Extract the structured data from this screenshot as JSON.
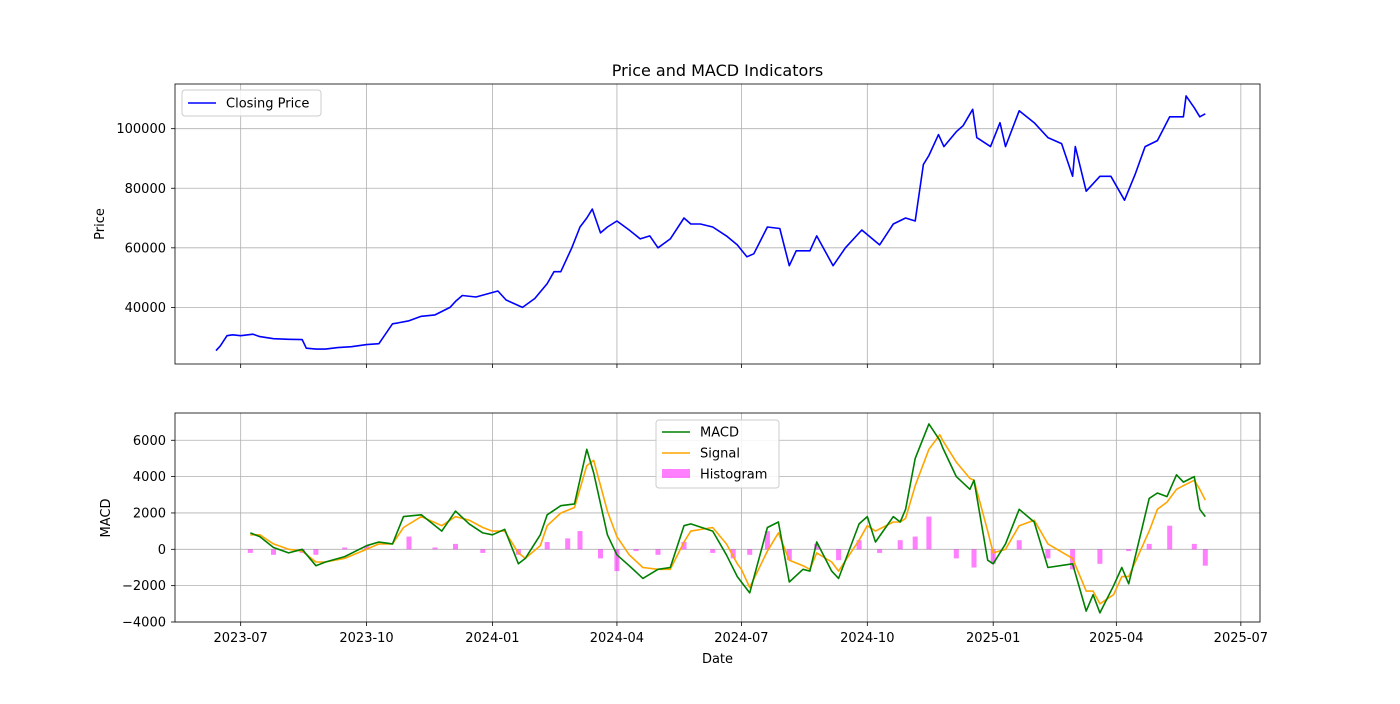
{
  "chart_data": [
    {
      "type": "line",
      "title": "Price and MACD Indicators",
      "xlabel": "",
      "ylabel": "Price",
      "ylim": [
        21000,
        115000
      ],
      "yticks": [
        40000,
        60000,
        80000,
        100000
      ],
      "grid": true,
      "legend": "top-left",
      "series": [
        {
          "name": "Closing Price",
          "color": "#0000ff",
          "x": [
            "2023-06-13",
            "2023-06-16",
            "2023-06-21",
            "2023-06-25",
            "2023-07-01",
            "2023-07-10",
            "2023-07-15",
            "2023-07-25",
            "2023-08-05",
            "2023-08-15",
            "2023-08-18",
            "2023-08-25",
            "2023-09-01",
            "2023-09-10",
            "2023-09-20",
            "2023-10-01",
            "2023-10-10",
            "2023-10-20",
            "2023-10-24",
            "2023-11-01",
            "2023-11-10",
            "2023-11-20",
            "2023-12-01",
            "2023-12-05",
            "2023-12-10",
            "2023-12-20",
            "2024-01-01",
            "2024-01-05",
            "2024-01-11",
            "2024-01-23",
            "2024-02-01",
            "2024-02-10",
            "2024-02-15",
            "2024-02-20",
            "2024-02-28",
            "2024-03-05",
            "2024-03-10",
            "2024-03-14",
            "2024-03-20",
            "2024-03-25",
            "2024-04-01",
            "2024-04-10",
            "2024-04-18",
            "2024-04-25",
            "2024-05-01",
            "2024-05-10",
            "2024-05-20",
            "2024-05-25",
            "2024-06-01",
            "2024-06-10",
            "2024-06-20",
            "2024-06-28",
            "2024-07-05",
            "2024-07-10",
            "2024-07-20",
            "2024-07-29",
            "2024-08-05",
            "2024-08-10",
            "2024-08-20",
            "2024-08-25",
            "2024-09-06",
            "2024-09-15",
            "2024-09-27",
            "2024-10-10",
            "2024-10-20",
            "2024-10-29",
            "2024-11-05",
            "2024-11-11",
            "2024-11-15",
            "2024-11-22",
            "2024-11-26",
            "2024-12-05",
            "2024-12-10",
            "2024-12-17",
            "2024-12-20",
            "2024-12-30",
            "2025-01-06",
            "2025-01-10",
            "2025-01-20",
            "2025-01-31",
            "2025-02-10",
            "2025-02-20",
            "2025-02-28",
            "2025-03-02",
            "2025-03-10",
            "2025-03-20",
            "2025-03-28",
            "2025-04-07",
            "2025-04-15",
            "2025-04-22",
            "2025-05-01",
            "2025-05-10",
            "2025-05-20",
            "2025-05-22",
            "2025-05-28",
            "2025-06-01",
            "2025-06-05"
          ],
          "y": [
            25500,
            27000,
            30500,
            30800,
            30500,
            31000,
            30200,
            29500,
            29300,
            29200,
            26300,
            26000,
            26000,
            26500,
            26800,
            27500,
            27800,
            34500,
            34800,
            35500,
            37000,
            37500,
            40000,
            42000,
            44000,
            43500,
            45000,
            45500,
            42500,
            40000,
            43000,
            48000,
            52000,
            52000,
            60000,
            67000,
            70000,
            73000,
            65000,
            67000,
            69000,
            66000,
            63000,
            64000,
            60000,
            63000,
            70000,
            68000,
            68000,
            67000,
            64000,
            61000,
            57000,
            58000,
            67000,
            66500,
            54000,
            59000,
            59000,
            64000,
            54000,
            60000,
            66000,
            61000,
            68000,
            70000,
            69000,
            88000,
            91000,
            98000,
            94000,
            99000,
            101000,
            106500,
            97000,
            94000,
            102000,
            94000,
            106000,
            102000,
            97000,
            95000,
            84000,
            94000,
            79000,
            84000,
            84000,
            76000,
            85000,
            94000,
            96000,
            104000,
            104000,
            111000,
            107000,
            104000,
            105000
          ]
        }
      ]
    },
    {
      "type": "line",
      "title": "",
      "xlabel": "Date",
      "ylabel": "MACD",
      "ylim": [
        -4000,
        7500
      ],
      "yticks": [
        -4000,
        -2000,
        0,
        2000,
        4000,
        6000
      ],
      "xlim": [
        "2023-05-14",
        "2025-07-15"
      ],
      "xticks": [
        "2023-07",
        "2023-10",
        "2024-01",
        "2024-04",
        "2024-07",
        "2024-10",
        "2025-01",
        "2025-04",
        "2025-07"
      ],
      "grid": true,
      "legend": "top-center",
      "series": [
        {
          "name": "MACD",
          "color": "#008000",
          "x": [
            "2023-07-08",
            "2023-07-15",
            "2023-07-25",
            "2023-08-05",
            "2023-08-15",
            "2023-08-25",
            "2023-09-01",
            "2023-09-15",
            "2023-10-01",
            "2023-10-10",
            "2023-10-20",
            "2023-10-28",
            "2023-11-10",
            "2023-11-25",
            "2023-12-05",
            "2023-12-15",
            "2023-12-25",
            "2024-01-01",
            "2024-01-10",
            "2024-01-20",
            "2024-01-25",
            "2024-02-05",
            "2024-02-10",
            "2024-02-20",
            "2024-03-01",
            "2024-03-10",
            "2024-03-15",
            "2024-03-25",
            "2024-04-01",
            "2024-04-10",
            "2024-04-20",
            "2024-05-01",
            "2024-05-10",
            "2024-05-20",
            "2024-05-25",
            "2024-06-10",
            "2024-06-20",
            "2024-06-28",
            "2024-07-01",
            "2024-07-07",
            "2024-07-20",
            "2024-07-28",
            "2024-08-05",
            "2024-08-15",
            "2024-08-20",
            "2024-08-25",
            "2024-09-05",
            "2024-09-10",
            "2024-09-25",
            "2024-10-01",
            "2024-10-07",
            "2024-10-20",
            "2024-10-25",
            "2024-10-29",
            "2024-11-05",
            "2024-11-15",
            "2024-11-23",
            "2024-11-25",
            "2024-12-05",
            "2024-12-15",
            "2024-12-18",
            "2024-12-28",
            "2025-01-01",
            "2025-01-10",
            "2025-01-20",
            "2025-01-31",
            "2025-02-10",
            "2025-02-28",
            "2025-03-10",
            "2025-03-15",
            "2025-03-20",
            "2025-03-30",
            "2025-04-05",
            "2025-04-10",
            "2025-04-25",
            "2025-05-01",
            "2025-05-08",
            "2025-05-15",
            "2025-05-20",
            "2025-05-28",
            "2025-06-01",
            "2025-06-05"
          ],
          "y": [
            900,
            700,
            100,
            -200,
            0,
            -900,
            -700,
            -400,
            200,
            400,
            300,
            1800,
            1900,
            1000,
            2100,
            1400,
            900,
            800,
            1100,
            -800,
            -500,
            800,
            1900,
            2400,
            2500,
            5500,
            4200,
            800,
            -300,
            -900,
            -1600,
            -1100,
            -1000,
            1300,
            1400,
            1000,
            -300,
            -1500,
            -1800,
            -2400,
            1200,
            1500,
            -1800,
            -1100,
            -1200,
            400,
            -1200,
            -1600,
            1400,
            1800,
            400,
            1800,
            1500,
            2200,
            5000,
            6900,
            6000,
            5600,
            4000,
            3300,
            3800,
            -600,
            -800,
            300,
            2200,
            1500,
            -1000,
            -800,
            -3400,
            -2500,
            -3500,
            -2000,
            -1000,
            -1900,
            2800,
            3100,
            2900,
            4100,
            3700,
            4000,
            2200,
            1800
          ]
        },
        {
          "name": "Signal",
          "color": "#ffa500",
          "x": [
            "2023-07-08",
            "2023-07-15",
            "2023-07-25",
            "2023-08-05",
            "2023-08-15",
            "2023-08-25",
            "2023-09-01",
            "2023-09-15",
            "2023-10-01",
            "2023-10-10",
            "2023-10-20",
            "2023-10-28",
            "2023-11-10",
            "2023-11-25",
            "2023-12-05",
            "2023-12-15",
            "2023-12-25",
            "2024-01-01",
            "2024-01-10",
            "2024-01-20",
            "2024-01-25",
            "2024-02-05",
            "2024-02-10",
            "2024-02-20",
            "2024-03-01",
            "2024-03-10",
            "2024-03-15",
            "2024-03-25",
            "2024-04-01",
            "2024-04-10",
            "2024-04-20",
            "2024-05-01",
            "2024-05-10",
            "2024-05-20",
            "2024-05-25",
            "2024-06-10",
            "2024-06-20",
            "2024-06-28",
            "2024-07-01",
            "2024-07-07",
            "2024-07-20",
            "2024-07-28",
            "2024-08-05",
            "2024-08-15",
            "2024-08-20",
            "2024-08-25",
            "2024-09-05",
            "2024-09-10",
            "2024-09-25",
            "2024-10-01",
            "2024-10-07",
            "2024-10-20",
            "2024-10-25",
            "2024-10-29",
            "2024-11-05",
            "2024-11-15",
            "2024-11-23",
            "2024-11-25",
            "2024-12-05",
            "2024-12-15",
            "2024-12-18",
            "2024-12-28",
            "2025-01-01",
            "2025-01-10",
            "2025-01-20",
            "2025-01-31",
            "2025-02-10",
            "2025-02-28",
            "2025-03-10",
            "2025-03-15",
            "2025-03-20",
            "2025-03-30",
            "2025-04-05",
            "2025-04-10",
            "2025-04-25",
            "2025-05-01",
            "2025-05-08",
            "2025-05-15",
            "2025-05-20",
            "2025-05-28",
            "2025-06-01",
            "2025-06-05"
          ],
          "y": [
            800,
            800,
            300,
            0,
            -100,
            -700,
            -700,
            -500,
            0,
            300,
            300,
            1200,
            1800,
            1300,
            1800,
            1600,
            1200,
            1000,
            1000,
            -200,
            -500,
            200,
            1300,
            2000,
            2300,
            4600,
            4900,
            2100,
            700,
            -300,
            -1000,
            -1100,
            -1100,
            400,
            1000,
            1200,
            300,
            -800,
            -1100,
            -2100,
            -100,
            900,
            -600,
            -900,
            -1100,
            -200,
            -700,
            -1200,
            500,
            1300,
            1000,
            1500,
            1500,
            1700,
            3500,
            5500,
            6300,
            6000,
            4800,
            3900,
            3800,
            1000,
            -200,
            0,
            1300,
            1600,
            300,
            -500,
            -2300,
            -2300,
            -3000,
            -2500,
            -1500,
            -1500,
            1000,
            2200,
            2600,
            3300,
            3500,
            3800,
            3300,
            2700
          ]
        },
        {
          "name": "Histogram",
          "color": "#ff00ff",
          "type": "bar",
          "x": [
            "2023-07-08",
            "2023-07-25",
            "2023-08-15",
            "2023-08-25",
            "2023-09-15",
            "2023-10-01",
            "2023-10-20",
            "2023-11-01",
            "2023-11-20",
            "2023-12-05",
            "2023-12-25",
            "2024-01-20",
            "2024-02-10",
            "2024-02-25",
            "2024-03-05",
            "2024-03-20",
            "2024-04-01",
            "2024-04-15",
            "2024-05-01",
            "2024-05-20",
            "2024-06-10",
            "2024-06-25",
            "2024-07-07",
            "2024-07-20",
            "2024-08-05",
            "2024-08-25",
            "2024-09-10",
            "2024-09-25",
            "2024-10-10",
            "2024-10-25",
            "2024-11-05",
            "2024-11-15",
            "2024-12-05",
            "2024-12-18",
            "2025-01-01",
            "2025-01-20",
            "2025-02-10",
            "2025-02-28",
            "2025-03-20",
            "2025-04-10",
            "2025-04-25",
            "2025-05-10",
            "2025-05-28",
            "2025-06-05"
          ],
          "y": [
            -200,
            -300,
            -200,
            -300,
            100,
            200,
            0,
            700,
            100,
            300,
            -200,
            -300,
            400,
            600,
            1000,
            -500,
            -1200,
            -100,
            -300,
            400,
            -200,
            -500,
            -300,
            1000,
            -600,
            300,
            -600,
            500,
            -200,
            500,
            700,
            1800,
            -500,
            -1000,
            -800,
            500,
            -500,
            -1100,
            -800,
            -100,
            300,
            1300,
            300,
            -900
          ]
        }
      ]
    }
  ]
}
